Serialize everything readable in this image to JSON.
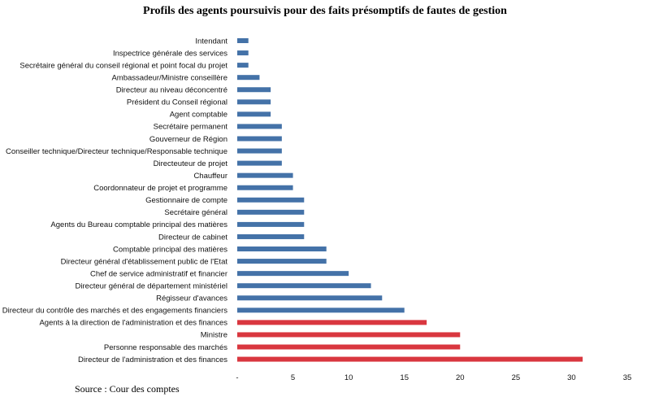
{
  "chart_data": {
    "type": "bar",
    "orientation": "horizontal",
    "title": "Profils des agents poursuivis pour des faits présomptifs de fautes de gestion",
    "xlabel": "",
    "ylabel": "",
    "xlim": [
      0,
      35
    ],
    "x_ticks": [
      0,
      5,
      10,
      15,
      20,
      25,
      30,
      35
    ],
    "x_tick_labels": [
      "-",
      "5",
      "10",
      "15",
      "20",
      "25",
      "30",
      "35"
    ],
    "grid": false,
    "legend": "none",
    "colors": {
      "default": "#4472A8",
      "highlight": "#D9373F"
    },
    "categories": [
      "Intendant",
      "Inspectrice générale des services",
      "Secrétaire général du conseil régional et point focal du projet",
      "Ambassadeur/Ministre conseillère",
      "Directeur au niveau déconcentré",
      "Président du Conseil régional",
      "Agent comptable",
      "Secrétaire permanent",
      "Gouverneur de Région",
      "Conseiller technique/Directeur technique/Responsable technique",
      "Directeuteur de projet",
      "Chauffeur",
      "Coordonnateur de projet et programme",
      "Gestionnaire de compte",
      "Secrétaire général",
      "Agents du Bureau comptable principal des matières",
      "Directeur de cabinet",
      "Comptable principal des matières",
      "Directeur général d'établissement public de l'Etat",
      "Chef de service administratif et financier",
      "Directeur général de département ministériel",
      "Régisseur d'avances",
      "Directeur du contrôle des marchés et des engagements financiers",
      "Agents à la direction de l'administration et des finances",
      "Ministre",
      "Personne responsable des marchés",
      "Directeur de l'administration et des finances"
    ],
    "values": [
      1,
      1,
      1,
      2,
      3,
      3,
      3,
      4,
      4,
      4,
      4,
      5,
      5,
      6,
      6,
      6,
      6,
      8,
      8,
      10,
      12,
      13,
      15,
      17,
      20,
      20,
      31
    ],
    "highlighted": [
      false,
      false,
      false,
      false,
      false,
      false,
      false,
      false,
      false,
      false,
      false,
      false,
      false,
      false,
      false,
      false,
      false,
      false,
      false,
      false,
      false,
      false,
      false,
      true,
      true,
      true,
      true
    ]
  },
  "source": "Source : Cour des comptes"
}
